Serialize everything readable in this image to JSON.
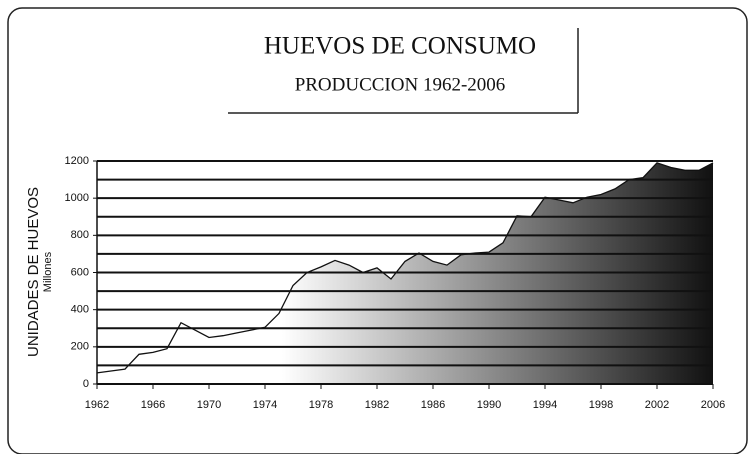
{
  "chart_data": {
    "type": "area",
    "title": "HUEVOS DE CONSUMO",
    "subtitle": "PRODUCCION 1962-2006",
    "ylabel": "UNIDADES DE HUEVOS",
    "yunit": "Millones",
    "x": [
      1962,
      1963,
      1964,
      1965,
      1966,
      1967,
      1968,
      1969,
      1970,
      1971,
      1972,
      1973,
      1974,
      1975,
      1976,
      1977,
      1978,
      1979,
      1980,
      1981,
      1982,
      1983,
      1984,
      1985,
      1986,
      1987,
      1988,
      1989,
      1990,
      1991,
      1992,
      1993,
      1994,
      1995,
      1996,
      1997,
      1998,
      1999,
      2000,
      2001,
      2002,
      2003,
      2004,
      2005,
      2006
    ],
    "values": [
      60,
      70,
      80,
      160,
      170,
      190,
      330,
      290,
      250,
      260,
      275,
      290,
      305,
      380,
      530,
      600,
      630,
      665,
      640,
      600,
      625,
      565,
      660,
      705,
      660,
      640,
      695,
      705,
      710,
      760,
      905,
      900,
      1005,
      990,
      975,
      1005,
      1020,
      1050,
      1100,
      1110,
      1190,
      1165,
      1150,
      1150,
      1190
    ],
    "xlim": [
      1962,
      2006
    ],
    "xticks": [
      1962,
      1966,
      1970,
      1974,
      1978,
      1982,
      1986,
      1990,
      1994,
      1998,
      2002,
      2006
    ],
    "ylim": [
      0,
      1200
    ],
    "yticks": [
      0,
      200,
      400,
      600,
      800,
      1000,
      1200
    ],
    "minor_yticks": [
      100,
      300,
      500,
      700,
      900,
      1100
    ],
    "grid": true,
    "colors": [
      "#ffffff",
      "#111111"
    ]
  }
}
